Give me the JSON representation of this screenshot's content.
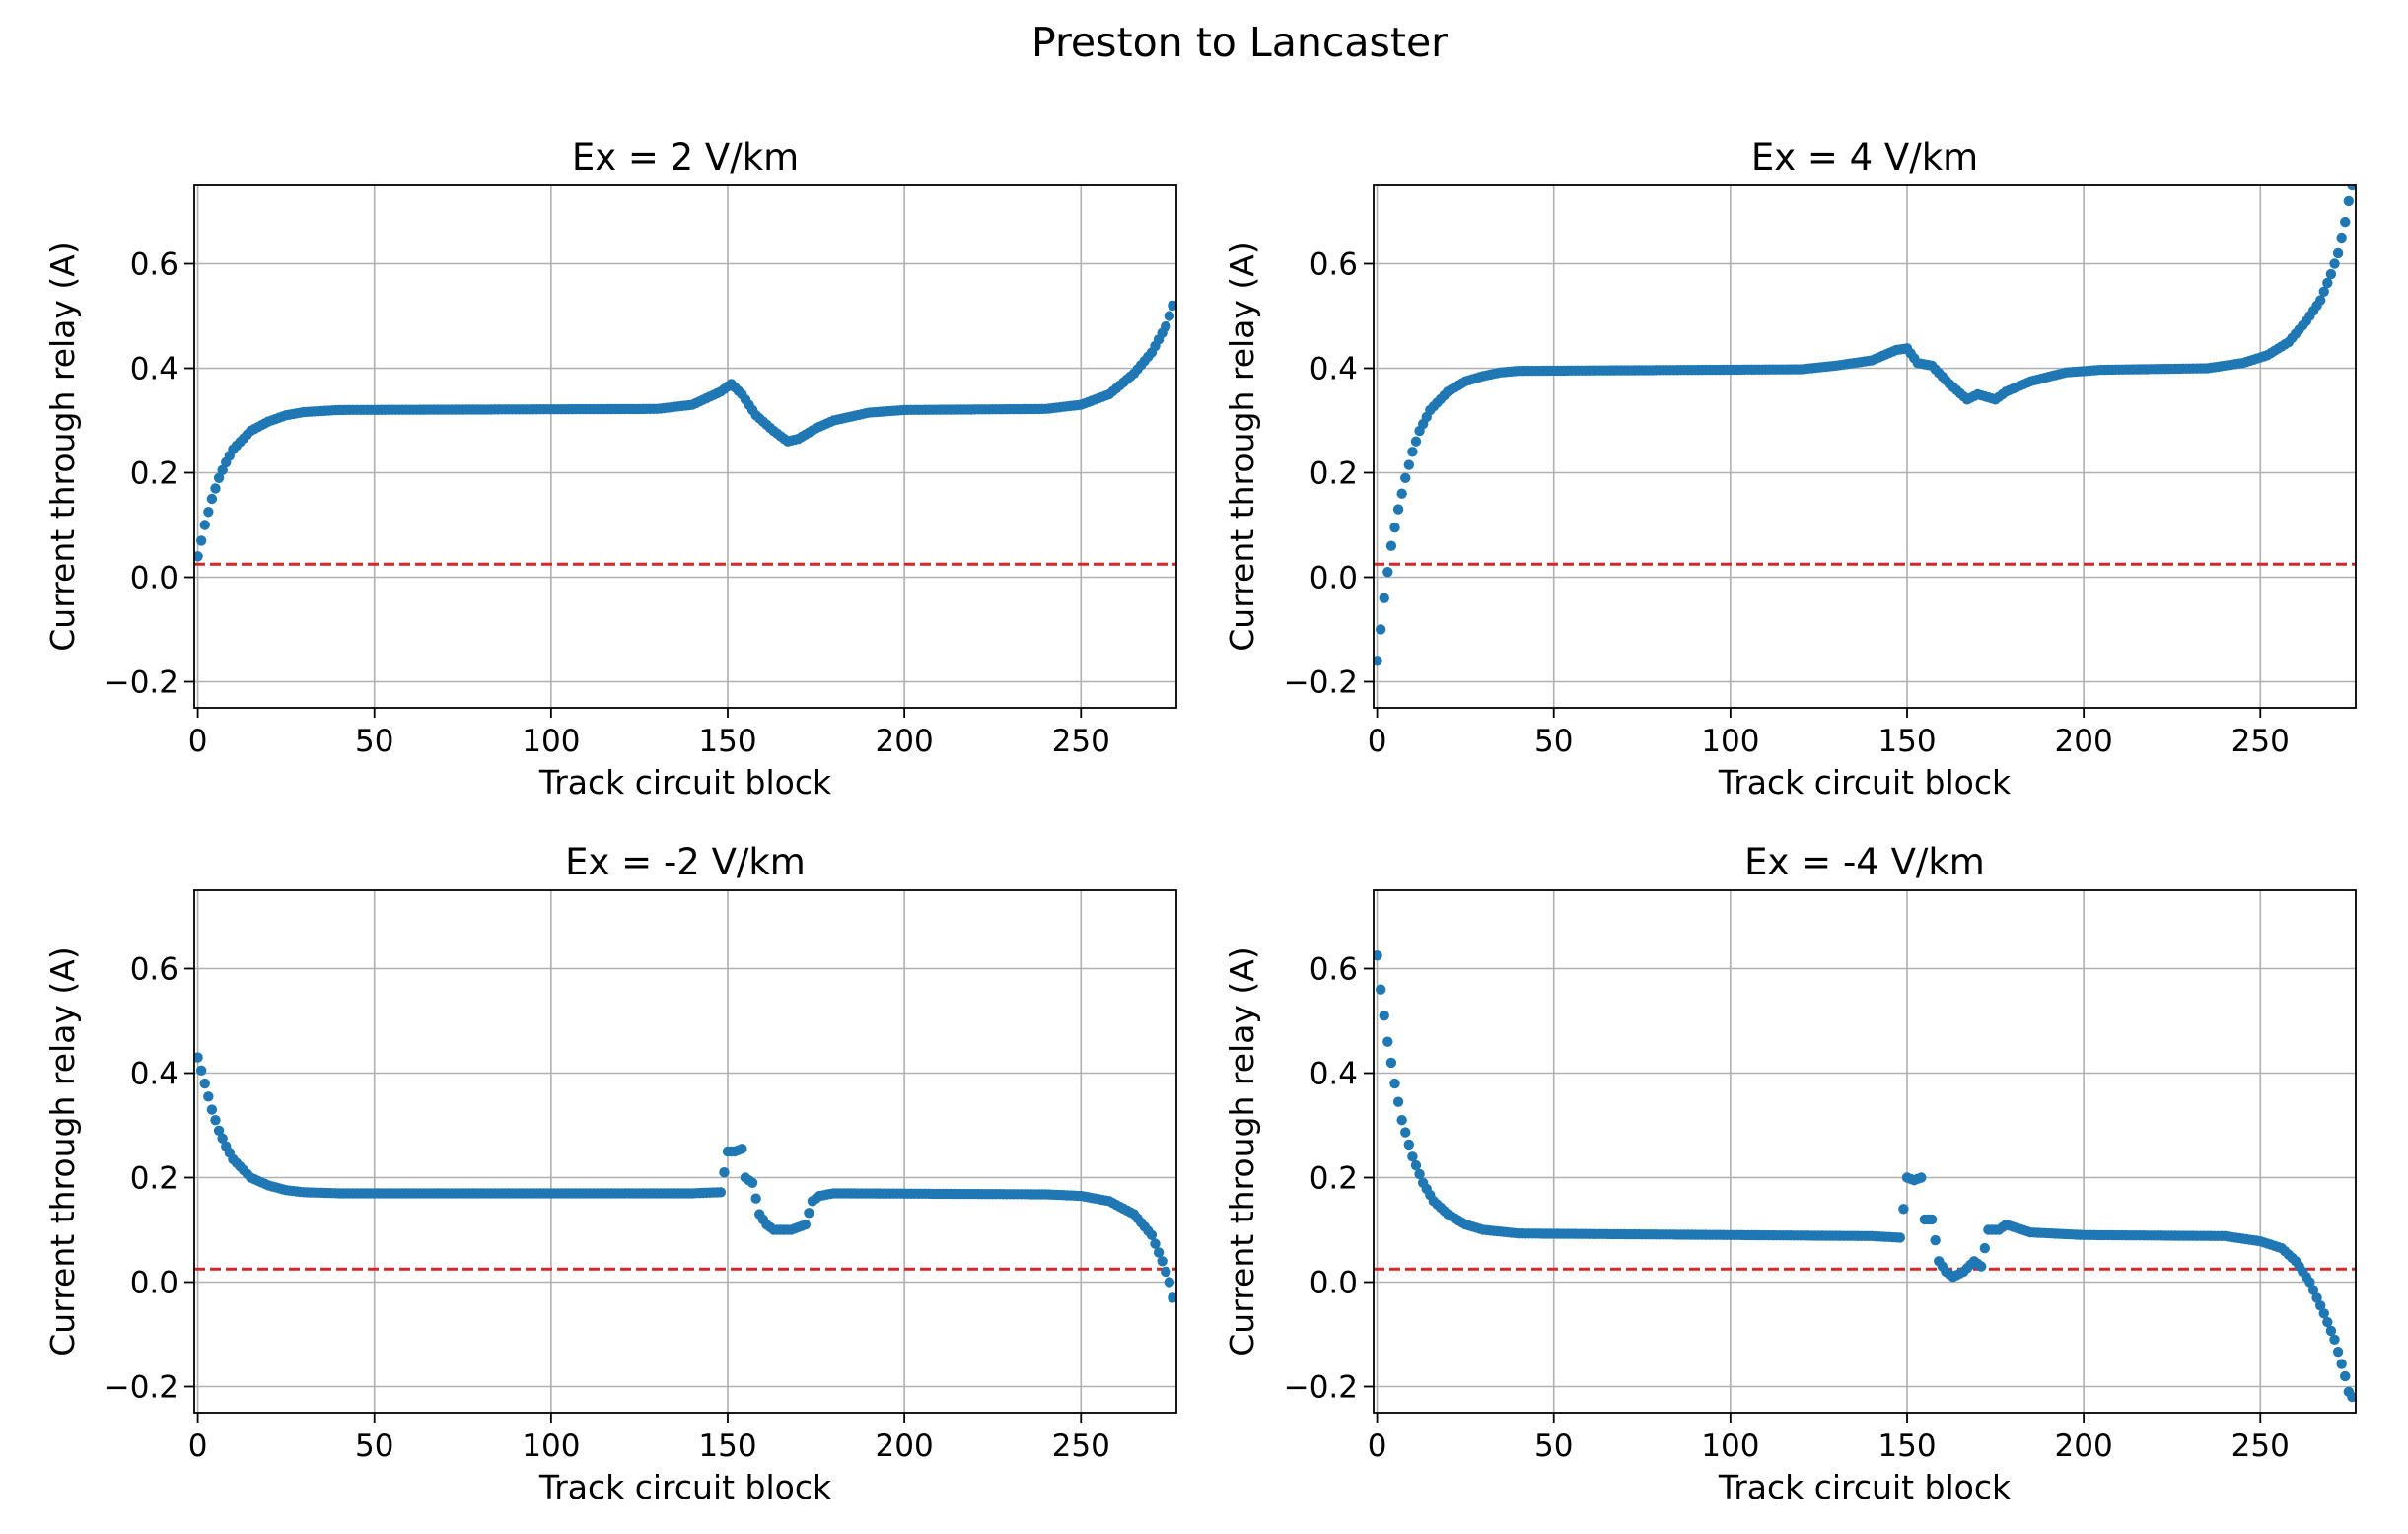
{
  "figure": {
    "title": "Preston to Lancaster"
  },
  "style": {
    "point_color": "#1f77b4",
    "threshold_color": "#d62728",
    "grid_color": "#b0b0b0"
  },
  "chart_data": [
    {
      "type": "scatter",
      "title": "Ex = 2 V/km",
      "xlabel": "Track circuit block",
      "ylabel": "Current through relay (A)",
      "xlim": [
        -1,
        277
      ],
      "ylim": [
        -0.25,
        0.75
      ],
      "xticks": [
        0,
        50,
        100,
        150,
        200,
        250
      ],
      "xtick_labels": [
        "0",
        "50",
        "100",
        "150",
        "200",
        "250"
      ],
      "yticks": [
        -0.2,
        0.0,
        0.2,
        0.4,
        0.6
      ],
      "ytick_labels": [
        "−0.2",
        "0.0",
        "0.2",
        "0.4",
        "0.6"
      ],
      "grid": true,
      "threshold": 0.025,
      "anchors": [
        [
          0,
          0.04
        ],
        [
          2,
          0.1
        ],
        [
          4,
          0.15
        ],
        [
          6,
          0.19
        ],
        [
          8,
          0.22
        ],
        [
          10,
          0.245
        ],
        [
          15,
          0.28
        ],
        [
          20,
          0.298
        ],
        [
          25,
          0.31
        ],
        [
          30,
          0.316
        ],
        [
          40,
          0.32
        ],
        [
          130,
          0.322
        ],
        [
          140,
          0.33
        ],
        [
          148,
          0.355
        ],
        [
          151,
          0.37
        ],
        [
          154,
          0.35
        ],
        [
          158,
          0.31
        ],
        [
          163,
          0.28
        ],
        [
          167,
          0.26
        ],
        [
          170,
          0.265
        ],
        [
          175,
          0.285
        ],
        [
          180,
          0.3
        ],
        [
          190,
          0.315
        ],
        [
          200,
          0.32
        ],
        [
          240,
          0.322
        ],
        [
          250,
          0.33
        ],
        [
          258,
          0.35
        ],
        [
          265,
          0.39
        ],
        [
          270,
          0.43
        ],
        [
          274,
          0.48
        ],
        [
          276,
          0.52
        ]
      ]
    },
    {
      "type": "scatter",
      "title": "Ex = 4 V/km",
      "xlabel": "Track circuit block",
      "ylabel": "Current through relay (A)",
      "xlim": [
        -1,
        277
      ],
      "ylim": [
        -0.25,
        0.75
      ],
      "xticks": [
        0,
        50,
        100,
        150,
        200,
        250
      ],
      "xtick_labels": [
        "0",
        "50",
        "100",
        "150",
        "200",
        "250"
      ],
      "yticks": [
        -0.2,
        0.0,
        0.2,
        0.4,
        0.6
      ],
      "ytick_labels": [
        "−0.2",
        "0.0",
        "0.2",
        "0.4",
        "0.6"
      ],
      "grid": true,
      "threshold": 0.025,
      "anchors": [
        [
          0,
          -0.16
        ],
        [
          1,
          -0.1
        ],
        [
          2,
          -0.04
        ],
        [
          3,
          0.01
        ],
        [
          4,
          0.06
        ],
        [
          6,
          0.13
        ],
        [
          8,
          0.19
        ],
        [
          10,
          0.24
        ],
        [
          12,
          0.28
        ],
        [
          15,
          0.32
        ],
        [
          20,
          0.355
        ],
        [
          25,
          0.375
        ],
        [
          30,
          0.385
        ],
        [
          35,
          0.392
        ],
        [
          40,
          0.395
        ],
        [
          120,
          0.398
        ],
        [
          130,
          0.405
        ],
        [
          140,
          0.415
        ],
        [
          147,
          0.435
        ],
        [
          150,
          0.438
        ],
        [
          153,
          0.41
        ],
        [
          157,
          0.405
        ],
        [
          162,
          0.37
        ],
        [
          167,
          0.34
        ],
        [
          170,
          0.35
        ],
        [
          175,
          0.34
        ],
        [
          178,
          0.355
        ],
        [
          185,
          0.375
        ],
        [
          195,
          0.392
        ],
        [
          205,
          0.397
        ],
        [
          235,
          0.4
        ],
        [
          245,
          0.41
        ],
        [
          252,
          0.425
        ],
        [
          258,
          0.45
        ],
        [
          263,
          0.49
        ],
        [
          267,
          0.53
        ],
        [
          270,
          0.58
        ],
        [
          272,
          0.62
        ],
        [
          274,
          0.68
        ],
        [
          275,
          0.72
        ],
        [
          276,
          0.75
        ]
      ]
    },
    {
      "type": "scatter",
      "title": "Ex = -2 V/km",
      "xlabel": "Track circuit block",
      "ylabel": "Current through relay (A)",
      "xlim": [
        -1,
        277
      ],
      "ylim": [
        -0.25,
        0.75
      ],
      "xticks": [
        0,
        50,
        100,
        150,
        200,
        250
      ],
      "xtick_labels": [
        "0",
        "50",
        "100",
        "150",
        "200",
        "250"
      ],
      "yticks": [
        -0.2,
        0.0,
        0.2,
        0.4,
        0.6
      ],
      "ytick_labels": [
        "−0.2",
        "0.0",
        "0.2",
        "0.4",
        "0.6"
      ],
      "grid": true,
      "threshold": 0.025,
      "anchors": [
        [
          0,
          0.43
        ],
        [
          2,
          0.38
        ],
        [
          4,
          0.33
        ],
        [
          6,
          0.29
        ],
        [
          8,
          0.26
        ],
        [
          10,
          0.235
        ],
        [
          15,
          0.2
        ],
        [
          20,
          0.185
        ],
        [
          25,
          0.176
        ],
        [
          30,
          0.172
        ],
        [
          40,
          0.17
        ],
        [
          140,
          0.17
        ],
        [
          148,
          0.172
        ],
        [
          149,
          0.21
        ],
        [
          150,
          0.25
        ],
        [
          152,
          0.25
        ],
        [
          154,
          0.255
        ],
        [
          155,
          0.2
        ],
        [
          157,
          0.19
        ],
        [
          159,
          0.13
        ],
        [
          161,
          0.11
        ],
        [
          163,
          0.1
        ],
        [
          168,
          0.1
        ],
        [
          172,
          0.11
        ],
        [
          174,
          0.155
        ],
        [
          176,
          0.165
        ],
        [
          180,
          0.17
        ],
        [
          240,
          0.168
        ],
        [
          250,
          0.165
        ],
        [
          258,
          0.155
        ],
        [
          265,
          0.13
        ],
        [
          270,
          0.09
        ],
        [
          273,
          0.04
        ],
        [
          275,
          0.0
        ],
        [
          276,
          -0.03
        ]
      ]
    },
    {
      "type": "scatter",
      "title": "Ex = -4 V/km",
      "xlabel": "Track circuit block",
      "ylabel": "Current through relay (A)",
      "xlim": [
        -1,
        277
      ],
      "ylim": [
        -0.25,
        0.75
      ],
      "xticks": [
        0,
        50,
        100,
        150,
        200,
        250
      ],
      "xtick_labels": [
        "0",
        "50",
        "100",
        "150",
        "200",
        "250"
      ],
      "yticks": [
        -0.2,
        0.0,
        0.2,
        0.4,
        0.6
      ],
      "ytick_labels": [
        "−0.2",
        "0.0",
        "0.2",
        "0.4",
        "0.6"
      ],
      "grid": true,
      "threshold": 0.025,
      "anchors": [
        [
          0,
          0.625
        ],
        [
          1,
          0.56
        ],
        [
          2,
          0.51
        ],
        [
          3,
          0.46
        ],
        [
          5,
          0.38
        ],
        [
          7,
          0.31
        ],
        [
          10,
          0.24
        ],
        [
          13,
          0.19
        ],
        [
          16,
          0.155
        ],
        [
          20,
          0.13
        ],
        [
          25,
          0.11
        ],
        [
          30,
          0.1
        ],
        [
          40,
          0.093
        ],
        [
          140,
          0.088
        ],
        [
          148,
          0.085
        ],
        [
          149,
          0.14
        ],
        [
          150,
          0.2
        ],
        [
          152,
          0.195
        ],
        [
          154,
          0.2
        ],
        [
          155,
          0.12
        ],
        [
          157,
          0.12
        ],
        [
          159,
          0.04
        ],
        [
          161,
          0.02
        ],
        [
          163,
          0.01
        ],
        [
          166,
          0.02
        ],
        [
          169,
          0.04
        ],
        [
          171,
          0.03
        ],
        [
          173,
          0.1
        ],
        [
          176,
          0.1
        ],
        [
          178,
          0.11
        ],
        [
          185,
          0.095
        ],
        [
          200,
          0.09
        ],
        [
          240,
          0.088
        ],
        [
          250,
          0.078
        ],
        [
          256,
          0.065
        ],
        [
          260,
          0.04
        ],
        [
          264,
          0.0
        ],
        [
          268,
          -0.06
        ],
        [
          271,
          -0.11
        ],
        [
          274,
          -0.18
        ],
        [
          275,
          -0.21
        ],
        [
          276,
          -0.22
        ]
      ]
    }
  ]
}
